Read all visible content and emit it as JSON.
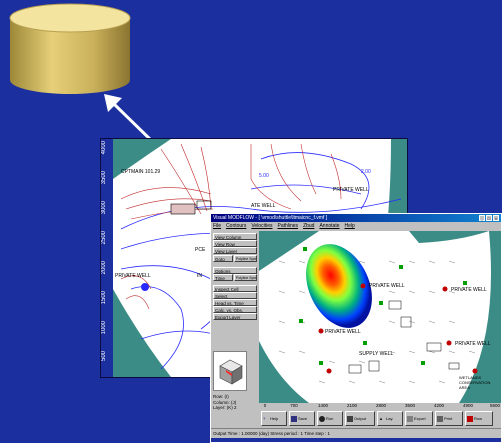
{
  "back_map": {
    "y_ticks": [
      "4000",
      "3500",
      "3000",
      "2500",
      "2000",
      "1500",
      "1000",
      "500"
    ],
    "labels": {
      "gridlink": "CPTMAIN 101.29",
      "private_well": "PRIVATE WELL",
      "ate_well": "ATE WELL",
      "pce": "PCE",
      "private_well_2": "PRIVATE WELL",
      "in": "IN",
      "contour_a": "5.00",
      "contour_b": "2.00"
    }
  },
  "window": {
    "title": "Visual MODFLOW - [ \\vmod\\shuttle\\ltmaicnc_f.vmf ]",
    "menu": [
      "File",
      "Contours",
      "Velocities",
      "Pathlines",
      "Zbud",
      "Annotate",
      "Help"
    ],
    "side_buttons": [
      "View Column",
      "View Row",
      "View Layer",
      "Goto",
      "Polyline Spot",
      "Options",
      "Time",
      "Polyline Spot",
      "Inspect Cell",
      "Select",
      "Head vs. Time",
      "Calc. vs. Obs.",
      "Export Layer"
    ],
    "coords": {
      "row_label": "Row:",
      "row_val": "(I)",
      "col_label": "Column:",
      "col_val": "(J)",
      "layer_label": "Layer:",
      "layer_val": "(K)",
      "layer_num": "2"
    },
    "x_ticks": [
      "0",
      "700",
      "1400",
      "2100",
      "2800",
      "3500",
      "4200",
      "4900",
      "5600"
    ],
    "toolbar": [
      "Help",
      "Save",
      "Run",
      "Output",
      "Lay.",
      "Export",
      "Print",
      "Row"
    ],
    "status": "Output Time : 1.00000 (day)  Stress period : 1  Time step : 1",
    "map_labels": {
      "private_well_a": "PRIVATE WELL",
      "private_well_b": "PRIVATE WELL",
      "private_well_c": "PRIVATE WELL",
      "private_well_d": "PRIVATE WELL",
      "wetland": "WETLANDS CONSERVATION AREA",
      "supply_well": "SUPPLY WELL"
    }
  },
  "colors": {
    "background": "#1c2f9e",
    "cylinder": "#d8c068",
    "arrow": "#ffffff"
  }
}
